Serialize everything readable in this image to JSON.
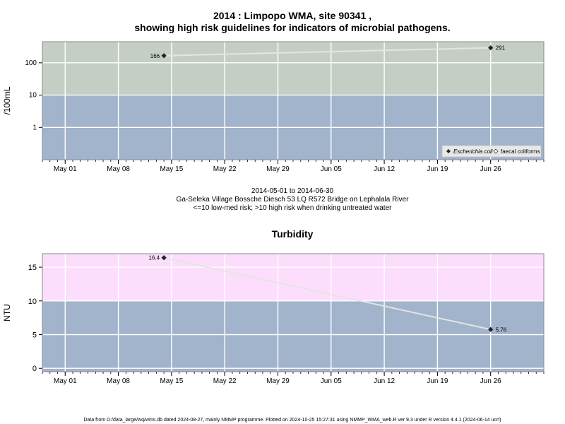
{
  "header": {
    "title_line1": "2014 : Limpopo WMA, site 90341 ,",
    "title_line2": "showing high risk guidelines for indicators of microbial pathogens."
  },
  "middle": {
    "date_range": "2014-05-01 to 2014-06-30",
    "site_desc": "Ga-Seleka Village Bossche Diesch 53 LQ R572 Bridge on Lephalala River",
    "risk_note": "<=10 low-med risk; >10 high risk when drinking untreated water"
  },
  "footer": {
    "note": "Data from D:/data_large/wq/wms.db dated 2024-08-27, mainly NMMP programme. Plotted on 2024-10-25 15:27:31 using NMMP_WMA_web.R ver 9.3 under R version 4.4.1 (2024-06-14 ucrt)"
  },
  "colors": {
    "high_risk_top": "#c5cec5",
    "high_risk_bottom": "#fcdefc",
    "low_risk": "#a2b4cc",
    "line": "#e4e4e4",
    "grid": "#ffffff"
  },
  "chart_data": [
    {
      "type": "line",
      "title": "",
      "ylabel": "/100mL",
      "yscale": "log",
      "ylim": [
        0.1,
        450
      ],
      "yticks": [
        1,
        10,
        100
      ],
      "threshold": 10,
      "x_ticks": [
        "May 01",
        "May 08",
        "May 15",
        "May 22",
        "May 29",
        "Jun 05",
        "Jun 12",
        "Jun 19",
        "Jun 26"
      ],
      "x_tick_dates": [
        "2014-05-01",
        "2014-05-08",
        "2014-05-15",
        "2014-05-22",
        "2014-05-29",
        "2014-06-05",
        "2014-06-12",
        "2014-06-19",
        "2014-06-26"
      ],
      "xlim": [
        "2014-04-28",
        "2014-07-03"
      ],
      "legend": [
        "Escherichia coli",
        "faecal coliforms"
      ],
      "legend_position": "bottom-right",
      "series": [
        {
          "name": "Escherichia coli",
          "x": [
            "2014-05-14",
            "2014-06-26"
          ],
          "y": [
            166,
            291
          ],
          "labels": [
            "166",
            "291"
          ]
        }
      ]
    },
    {
      "type": "line",
      "title": "Turbidity",
      "ylabel": "NTU",
      "yscale": "linear",
      "ylim": [
        -0.5,
        17
      ],
      "yticks": [
        0,
        5,
        10,
        15
      ],
      "threshold": 10,
      "x_ticks": [
        "May 01",
        "May 08",
        "May 15",
        "May 22",
        "May 29",
        "Jun 05",
        "Jun 12",
        "Jun 19",
        "Jun 26"
      ],
      "x_tick_dates": [
        "2014-05-01",
        "2014-05-08",
        "2014-05-15",
        "2014-05-22",
        "2014-05-29",
        "2014-06-05",
        "2014-06-12",
        "2014-06-19",
        "2014-06-26"
      ],
      "xlim": [
        "2014-04-28",
        "2014-07-03"
      ],
      "series": [
        {
          "x": [
            "2014-05-14",
            "2014-06-26"
          ],
          "y": [
            16.4,
            5.76
          ],
          "labels": [
            "16.4",
            "5.76"
          ]
        }
      ]
    }
  ]
}
